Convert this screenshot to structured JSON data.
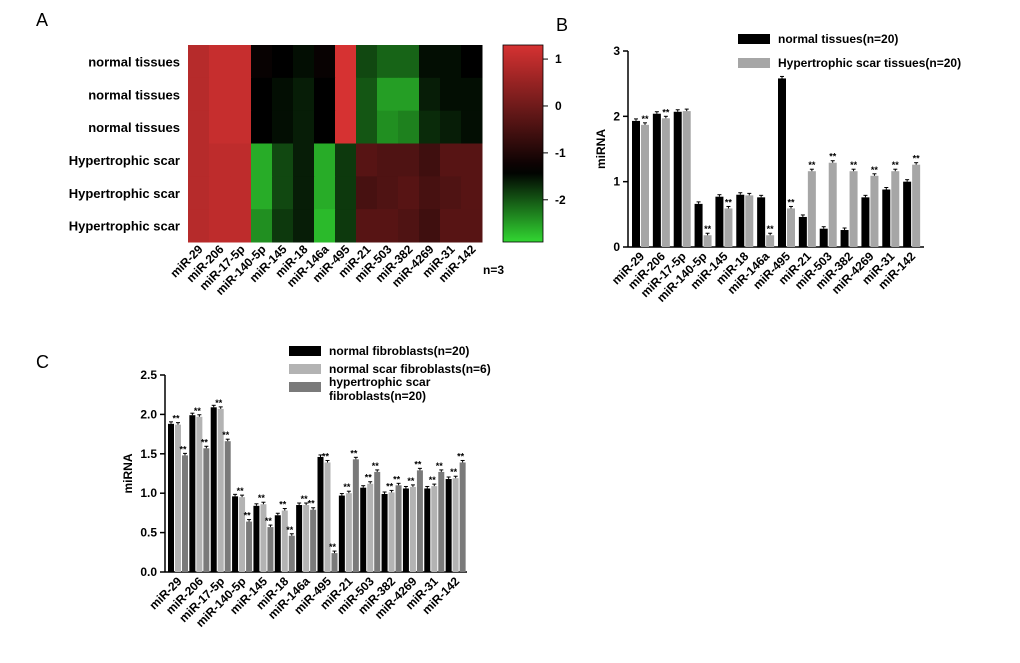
{
  "panels": {
    "a": "A",
    "b": "B",
    "c": "C"
  },
  "chart_data": [
    {
      "type": "heatmap",
      "panel": "A",
      "rows": [
        "normal tissues",
        "normal tissues",
        "normal tissues",
        "Hypertrophic scar",
        "Hypertrophic scar",
        "Hypertrophic scar"
      ],
      "columns": [
        "miR-29",
        "miR-206",
        "miR-17-5p",
        "miR-140-5p",
        "miR-145",
        "miR-18",
        "miR-146a",
        "miR-495",
        "miR-21",
        "miR-503",
        "miR-382",
        "miR-4269",
        "miR-31",
        "miR-142"
      ],
      "values": [
        [
          0.9,
          1.1,
          1.1,
          -1.3,
          -1.4,
          -1.5,
          -1.3,
          1.3,
          -1.9,
          -2.1,
          -2.1,
          -1.5,
          -1.5,
          -1.4
        ],
        [
          0.9,
          1.1,
          1.1,
          -1.4,
          -1.5,
          -1.6,
          -1.4,
          1.3,
          -2.0,
          -2.5,
          -2.5,
          -1.6,
          -1.5,
          -1.5
        ],
        [
          0.9,
          1.1,
          1.1,
          -1.4,
          -1.5,
          -1.6,
          -1.4,
          1.3,
          -2.0,
          -2.4,
          -2.3,
          -1.7,
          -1.6,
          -1.5
        ],
        [
          0.9,
          1.0,
          1.0,
          -2.6,
          -1.9,
          -1.6,
          -2.6,
          -1.8,
          -0.3,
          -0.4,
          -0.4,
          -0.6,
          -0.3,
          -0.3
        ],
        [
          0.9,
          1.0,
          1.0,
          -2.6,
          -1.9,
          -1.6,
          -2.6,
          -1.8,
          -0.5,
          -0.4,
          -0.3,
          -0.5,
          -0.4,
          -0.3
        ],
        [
          0.9,
          1.0,
          1.0,
          -2.4,
          -1.8,
          -1.6,
          -2.7,
          -1.8,
          -0.3,
          -0.3,
          -0.4,
          -0.6,
          -0.3,
          -0.3
        ]
      ],
      "colorbar": {
        "min": -2.9,
        "max": 1.3,
        "ticks": [
          1,
          0,
          -1,
          -2
        ]
      },
      "note": "n=3"
    },
    {
      "type": "bar",
      "panel": "B",
      "ylabel": "miRNA",
      "ylim": [
        0,
        3
      ],
      "yticks": [
        0,
        1,
        2,
        3
      ],
      "categories": [
        "miR-29",
        "miR-206",
        "miR-17-5p",
        "miR-140-5p",
        "miR-145",
        "miR-18",
        "miR-146a",
        "miR-495",
        "miR-21",
        "miR-503",
        "miR-382",
        "miR-4269",
        "miR-31",
        "miR-142"
      ],
      "series": [
        {
          "name": "normal tissues(n=20)",
          "color": "#000000",
          "values": [
            1.93,
            2.04,
            2.07,
            0.66,
            0.77,
            0.8,
            0.76,
            2.58,
            0.46,
            0.28,
            0.26,
            0.76,
            0.88,
            1.0
          ]
        },
        {
          "name": "Hypertrophic scar tissues(n=20)",
          "color": "#a6a6a6",
          "values": [
            1.87,
            1.97,
            2.08,
            0.18,
            0.59,
            0.79,
            0.18,
            0.59,
            1.16,
            1.29,
            1.16,
            1.09,
            1.16,
            1.26
          ]
        }
      ],
      "annotations": [
        "**",
        "**",
        "",
        "**",
        "**",
        "",
        "**",
        "**",
        "**",
        "**",
        "**",
        "**",
        "**",
        "**"
      ]
    },
    {
      "type": "bar",
      "panel": "C",
      "ylabel": "miRNA",
      "ylim": [
        0,
        2.5
      ],
      "yticks": [
        "0.0",
        "0.5",
        "1.0",
        "1.5",
        "2.0",
        "2.5"
      ],
      "categories": [
        "miR-29",
        "miR-206",
        "miR-17-5p",
        "miR-140-5p",
        "miR-145",
        "miR-18",
        "miR-146a",
        "miR-495",
        "miR-21",
        "miR-503",
        "miR-382",
        "miR-4269",
        "miR-31",
        "miR-142"
      ],
      "series": [
        {
          "name": "normal fibroblasts(n=20)",
          "color": "#000000",
          "values": [
            1.88,
            1.99,
            2.09,
            0.96,
            0.84,
            0.72,
            0.85,
            1.46,
            0.97,
            1.07,
            0.99,
            1.06,
            1.06,
            1.18
          ]
        },
        {
          "name": "normal scar fibroblasts(n=6)",
          "color": "#b3b3b3",
          "values": [
            1.87,
            1.97,
            2.07,
            0.95,
            0.86,
            0.78,
            0.85,
            1.39,
            1.0,
            1.12,
            1.01,
            1.08,
            1.09,
            1.19
          ]
        },
        {
          "name": "hypertrophic scar fibroblasts(n=20)",
          "color": "#7a7a7a",
          "values": [
            1.48,
            1.57,
            1.66,
            0.64,
            0.57,
            0.46,
            0.79,
            0.24,
            1.43,
            1.27,
            1.1,
            1.29,
            1.27,
            1.39
          ]
        }
      ],
      "annotations": [
        [
          "**",
          "**"
        ],
        [
          "**",
          "**"
        ],
        [
          "**",
          "**"
        ],
        [
          "**",
          "**"
        ],
        [
          "**",
          "**"
        ],
        [
          "**",
          "**"
        ],
        [
          "**",
          "**"
        ],
        [
          "**",
          "**"
        ],
        [
          "**",
          "**"
        ],
        [
          "**",
          "**"
        ],
        [
          "**",
          "**"
        ],
        [
          "**",
          "**"
        ],
        [
          "**",
          "**"
        ],
        [
          "**",
          "**"
        ]
      ]
    }
  ]
}
